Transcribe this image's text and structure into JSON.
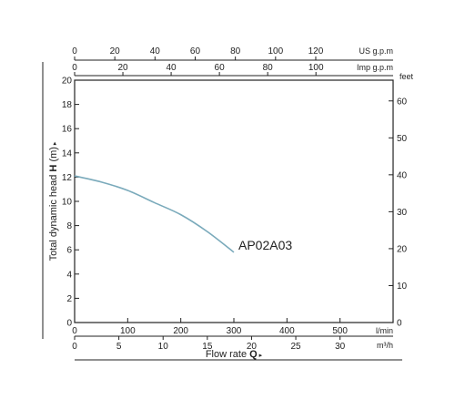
{
  "chart_data": {
    "type": "line",
    "ylabel_prefix": "Total dynamic head ",
    "ylabel_symbol": "H",
    "ylabel_unit": " (m)",
    "xlabel_prefix": "Flow rate ",
    "xlabel_symbol": "Q",
    "ylim": [
      0,
      20
    ],
    "xlim": [
      0,
      600
    ],
    "y_ticks": [
      0,
      2,
      4,
      6,
      8,
      10,
      12,
      14,
      16,
      18,
      20
    ],
    "x_ticks_lmin": [
      0,
      100,
      200,
      300,
      400,
      500
    ],
    "x_unit_lmin": "l/min",
    "x_ticks_m3h": [
      0,
      5,
      10,
      15,
      20,
      25,
      30
    ],
    "x_unit_m3h": "m³/h",
    "top_axis_us": {
      "unit": "US g.p.m",
      "ticks": [
        0,
        20,
        40,
        60,
        80,
        100,
        120
      ]
    },
    "top_axis_imp": {
      "unit": "Imp g.p.m",
      "ticks": [
        0,
        20,
        40,
        60,
        80,
        100
      ]
    },
    "right_axis": {
      "unit": "feet",
      "ticks": [
        0,
        10,
        20,
        30,
        40,
        50,
        60
      ]
    },
    "grid": false,
    "series": [
      {
        "name": "AP02A03",
        "color": "#7aaabb",
        "x": [
          0,
          50,
          100,
          150,
          200,
          250,
          300
        ],
        "y": [
          12.1,
          11.6,
          10.9,
          9.9,
          8.9,
          7.5,
          5.8
        ]
      }
    ]
  }
}
